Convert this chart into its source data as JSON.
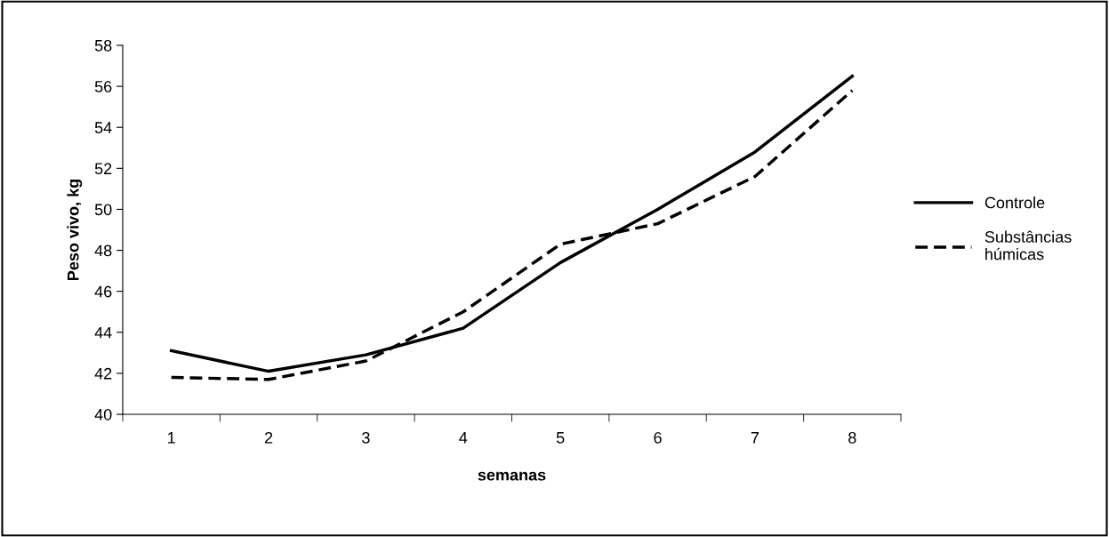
{
  "chart_data": {
    "type": "line",
    "xlabel": "semanas",
    "ylabel": "Peso vivo, kg",
    "categories": [
      "1",
      "2",
      "3",
      "4",
      "5",
      "6",
      "7",
      "8"
    ],
    "series": [
      {
        "name": "Controle",
        "color": "#000000",
        "line_style": "solid",
        "values": [
          43.1,
          42.1,
          42.9,
          44.2,
          47.4,
          50.0,
          52.8,
          56.5
        ]
      },
      {
        "name": "Substâncias\nhúmicas",
        "color": "#000000",
        "line_style": "dashed",
        "values": [
          41.8,
          41.7,
          42.6,
          45.0,
          48.3,
          49.3,
          51.6,
          55.8
        ]
      }
    ],
    "ylim": [
      40,
      58
    ],
    "yticks": [
      40,
      42,
      44,
      46,
      48,
      50,
      52,
      54,
      56,
      58
    ],
    "grid": false,
    "legend": "right",
    "marker": "none"
  }
}
